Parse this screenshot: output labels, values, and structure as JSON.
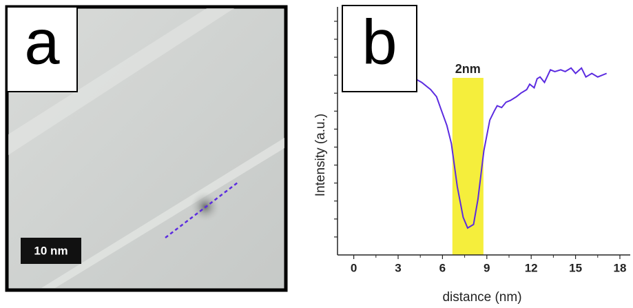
{
  "image_panel": {
    "label": "a",
    "scale_bar": "10 nm"
  },
  "chart_data": {
    "type": "line",
    "panel_label": "b",
    "x_label": "distance (nm)",
    "y_label": "Intensity (a.u.)",
    "x": [
      4.15,
      4.6,
      5.2,
      5.6,
      5.9,
      6.3,
      6.6,
      7.0,
      7.4,
      7.7,
      8.1,
      8.4,
      8.8,
      9.2,
      9.5,
      9.7,
      10.0,
      10.3,
      10.6,
      11.0,
      11.3,
      11.7,
      11.9,
      12.2,
      12.4,
      12.6,
      12.9,
      13.3,
      13.6,
      14.0,
      14.3,
      14.7,
      15.0,
      15.4,
      15.7,
      16.1,
      16.5,
      17.1
    ],
    "values": [
      9.8,
      9.6,
      9.2,
      8.8,
      8.1,
      7.2,
      6.2,
      3.8,
      2.1,
      1.5,
      1.7,
      3.1,
      5.8,
      7.5,
      8.0,
      8.3,
      8.2,
      8.5,
      8.6,
      8.8,
      9.0,
      9.2,
      9.5,
      9.3,
      9.8,
      9.9,
      9.6,
      10.3,
      10.2,
      10.3,
      10.2,
      10.4,
      10.1,
      10.4,
      9.9,
      10.1,
      9.9,
      10.1
    ],
    "color": "#5b2be0",
    "highlight": {
      "range": [
        6.67,
        8.77
      ],
      "color": "#f5ee3c",
      "label": "2nm"
    },
    "xlim": [
      -1.1,
      18.7
    ],
    "xticks": [
      0,
      3,
      6,
      9,
      12,
      15,
      18
    ],
    "ylim": [
      0,
      13.8
    ],
    "yticks": [
      1,
      2,
      3,
      4,
      5,
      6,
      7,
      8,
      9,
      10,
      11,
      12,
      13
    ]
  }
}
